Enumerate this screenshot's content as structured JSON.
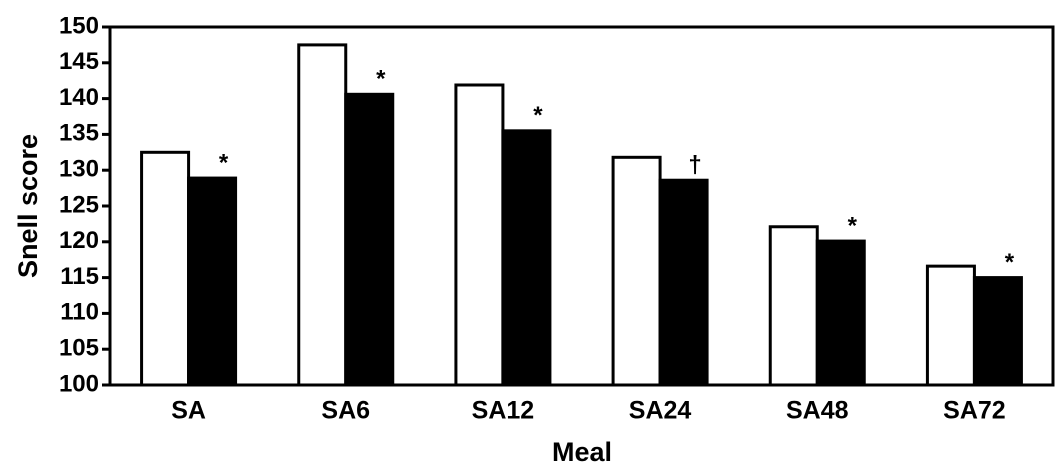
{
  "chart_data": {
    "type": "bar",
    "x_label": "Meal",
    "y_label": "Snell score",
    "categories": [
      "SA",
      "SA6",
      "SA12",
      "SA24",
      "SA48",
      "SA72"
    ],
    "series": [
      {
        "color": "#ffffff",
        "values": [
          132.5,
          147.5,
          141.9,
          131.8,
          122.1,
          116.6
        ]
      },
      {
        "color": "#000000",
        "values": [
          128.9,
          140.6,
          135.5,
          128.6,
          120.1,
          115.0
        ]
      }
    ],
    "annotations": [
      "*",
      "*",
      "*",
      "†",
      "*",
      "*"
    ],
    "ylim": [
      100,
      150
    ],
    "yticks": [
      100,
      105,
      110,
      115,
      120,
      125,
      130,
      135,
      140,
      145,
      150
    ]
  }
}
